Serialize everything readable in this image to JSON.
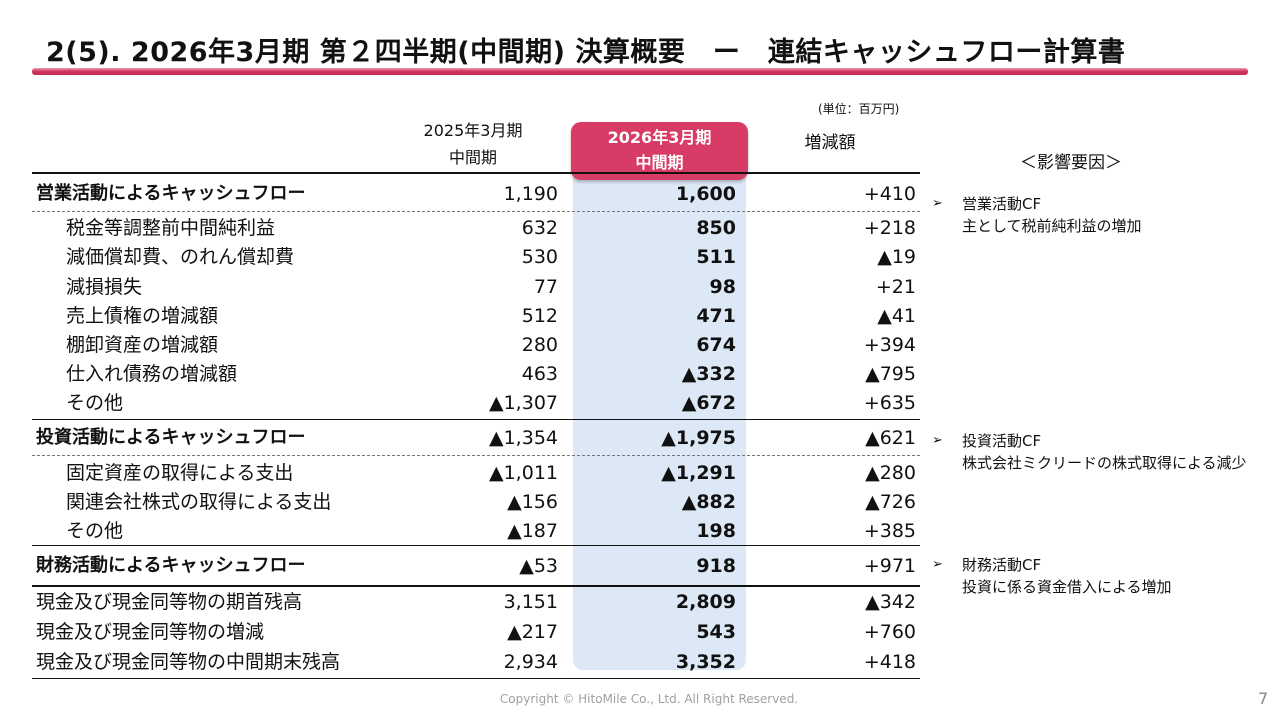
{
  "title": "2(5).  2026年3月期 第２四半期(中間期) 決算概要　ー　連結キャッシュフロー計算書",
  "unit": "(単位：百万円)",
  "columns": {
    "prev": {
      "line1": "2025年3月期",
      "line2": "中間期"
    },
    "curr": {
      "line1": "2026年3月期",
      "line2": "中間期"
    },
    "diff": "増減額"
  },
  "factor_header": "＜影響要因＞",
  "rows": [
    {
      "label": "営業活動によるキャッシュフロー",
      "prev": "1,190",
      "curr": "1,600",
      "diff": "+410"
    },
    {
      "label": "税金等調整前中間純利益",
      "prev": "632",
      "curr": "850",
      "diff": "+218"
    },
    {
      "label": "減価償却費、のれん償却費",
      "prev": "530",
      "curr": "511",
      "diff": "▲19"
    },
    {
      "label": "減損損失",
      "prev": "77",
      "curr": "98",
      "diff": "+21"
    },
    {
      "label": "売上債権の増減額",
      "prev": "512",
      "curr": "471",
      "diff": "▲41"
    },
    {
      "label": "棚卸資産の増減額",
      "prev": "280",
      "curr": "674",
      "diff": "+394"
    },
    {
      "label": "仕入れ債務の増減額",
      "prev": "463",
      "curr": "▲332",
      "diff": "▲795"
    },
    {
      "label": "その他",
      "prev": "▲1,307",
      "curr": "▲672",
      "diff": "+635"
    },
    {
      "label": "投資活動によるキャッシュフロー",
      "prev": "▲1,354",
      "curr": "▲1,975",
      "diff": "▲621"
    },
    {
      "label": "固定資産の取得による支出",
      "prev": "▲1,011",
      "curr": "▲1,291",
      "diff": "▲280"
    },
    {
      "label": "関連会社株式の取得による支出",
      "prev": "▲156",
      "curr": "▲882",
      "diff": "▲726"
    },
    {
      "label": "その他",
      "prev": "▲187",
      "curr": "198",
      "diff": "+385"
    },
    {
      "label": "財務活動によるキャッシュフロー",
      "prev": "▲53",
      "curr": "918",
      "diff": "+971"
    },
    {
      "label": "現金及び現金同等物の期首残高",
      "prev": "3,151",
      "curr": "2,809",
      "diff": "▲342"
    },
    {
      "label": "現金及び現金同等物の増減",
      "prev": "▲217",
      "curr": "543",
      "diff": "+760"
    },
    {
      "label": "現金及び現金同等物の中間期末残高",
      "prev": "2,934",
      "curr": "3,352",
      "diff": "+418"
    }
  ],
  "notes": [
    {
      "bullet": "➢",
      "title": "営業活動CF",
      "text": "主として税前純利益の増加"
    },
    {
      "bullet": "➢",
      "title": "投資活動CF",
      "text": "株式会社ミクリードの株式取得による減少"
    },
    {
      "bullet": "➢",
      "title": "財務活動CF",
      "text": "投資に係る資金借入による増加"
    }
  ],
  "footer": "Copyright © HitoMile Co., Ltd. All Right Reserved.",
  "page_number": "7"
}
